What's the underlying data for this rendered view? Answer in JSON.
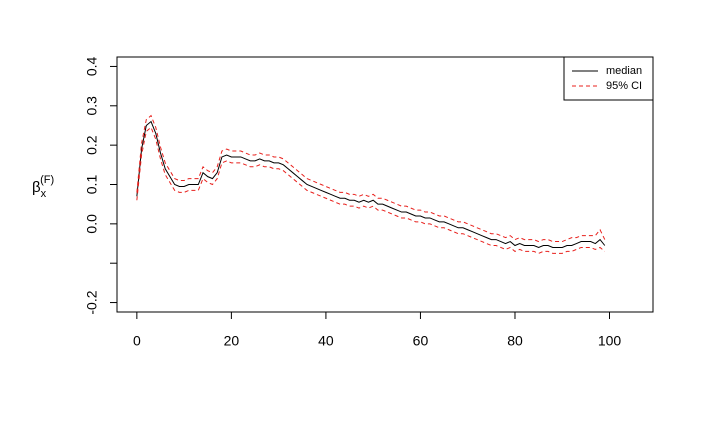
{
  "chart_data": {
    "type": "line",
    "ylabel": {
      "main": "β",
      "sub": "x",
      "sup": "(F)"
    },
    "x": [
      0,
      1,
      2,
      3,
      4,
      5,
      6,
      7,
      8,
      9,
      10,
      11,
      12,
      13,
      14,
      15,
      16,
      17,
      18,
      19,
      20,
      21,
      22,
      23,
      24,
      25,
      26,
      27,
      28,
      29,
      30,
      31,
      32,
      33,
      34,
      35,
      36,
      37,
      38,
      39,
      40,
      41,
      42,
      43,
      44,
      45,
      46,
      47,
      48,
      49,
      50,
      51,
      52,
      53,
      54,
      55,
      56,
      57,
      58,
      59,
      60,
      61,
      62,
      63,
      64,
      65,
      66,
      67,
      68,
      69,
      70,
      71,
      72,
      73,
      74,
      75,
      76,
      77,
      78,
      79,
      80,
      81,
      82,
      83,
      84,
      85,
      86,
      87,
      88,
      89,
      90,
      91,
      92,
      93,
      94,
      95,
      96,
      97,
      98,
      99
    ],
    "series": [
      {
        "name": "median",
        "color": "#000000",
        "values": [
          0.07,
          0.19,
          0.25,
          0.26,
          0.23,
          0.18,
          0.14,
          0.12,
          0.1,
          0.095,
          0.095,
          0.1,
          0.1,
          0.1,
          0.13,
          0.12,
          0.115,
          0.13,
          0.17,
          0.175,
          0.17,
          0.17,
          0.17,
          0.165,
          0.16,
          0.16,
          0.165,
          0.16,
          0.16,
          0.155,
          0.155,
          0.15,
          0.14,
          0.13,
          0.12,
          0.11,
          0.1,
          0.095,
          0.09,
          0.085,
          0.08,
          0.075,
          0.07,
          0.065,
          0.065,
          0.06,
          0.06,
          0.055,
          0.06,
          0.055,
          0.06,
          0.05,
          0.05,
          0.045,
          0.04,
          0.035,
          0.03,
          0.03,
          0.025,
          0.02,
          0.02,
          0.015,
          0.015,
          0.01,
          0.005,
          0.005,
          0.0,
          -0.005,
          -0.01,
          -0.01,
          -0.015,
          -0.02,
          -0.025,
          -0.03,
          -0.035,
          -0.04,
          -0.04,
          -0.045,
          -0.05,
          -0.045,
          -0.055,
          -0.05,
          -0.055,
          -0.055,
          -0.055,
          -0.06,
          -0.055,
          -0.055,
          -0.06,
          -0.06,
          -0.06,
          -0.055,
          -0.055,
          -0.05,
          -0.045,
          -0.045,
          -0.045,
          -0.05,
          -0.04,
          -0.055
        ]
      },
      {
        "name": "95% CI",
        "color": "#e8201c",
        "dashed": true,
        "upper": [
          0.08,
          0.205,
          0.265,
          0.275,
          0.245,
          0.195,
          0.155,
          0.135,
          0.115,
          0.11,
          0.11,
          0.115,
          0.115,
          0.115,
          0.145,
          0.135,
          0.13,
          0.145,
          0.185,
          0.19,
          0.185,
          0.185,
          0.185,
          0.18,
          0.175,
          0.175,
          0.18,
          0.175,
          0.175,
          0.17,
          0.17,
          0.165,
          0.155,
          0.145,
          0.135,
          0.125,
          0.115,
          0.11,
          0.105,
          0.1,
          0.095,
          0.09,
          0.085,
          0.08,
          0.08,
          0.075,
          0.075,
          0.07,
          0.075,
          0.07,
          0.075,
          0.065,
          0.065,
          0.06,
          0.055,
          0.05,
          0.045,
          0.045,
          0.04,
          0.035,
          0.035,
          0.03,
          0.03,
          0.025,
          0.02,
          0.02,
          0.015,
          0.01,
          0.005,
          0.005,
          0.0,
          -0.005,
          -0.01,
          -0.015,
          -0.02,
          -0.025,
          -0.025,
          -0.03,
          -0.035,
          -0.03,
          -0.04,
          -0.035,
          -0.04,
          -0.04,
          -0.04,
          -0.045,
          -0.04,
          -0.04,
          -0.045,
          -0.045,
          -0.045,
          -0.04,
          -0.035,
          -0.035,
          -0.03,
          -0.03,
          -0.03,
          -0.03,
          -0.015,
          -0.04
        ],
        "lower": [
          0.06,
          0.175,
          0.235,
          0.245,
          0.215,
          0.165,
          0.125,
          0.105,
          0.085,
          0.08,
          0.08,
          0.085,
          0.085,
          0.085,
          0.115,
          0.105,
          0.1,
          0.115,
          0.155,
          0.16,
          0.155,
          0.155,
          0.155,
          0.15,
          0.145,
          0.145,
          0.15,
          0.145,
          0.145,
          0.14,
          0.14,
          0.135,
          0.125,
          0.115,
          0.105,
          0.095,
          0.085,
          0.08,
          0.075,
          0.07,
          0.065,
          0.06,
          0.055,
          0.05,
          0.05,
          0.045,
          0.045,
          0.04,
          0.045,
          0.04,
          0.045,
          0.035,
          0.035,
          0.03,
          0.025,
          0.02,
          0.015,
          0.015,
          0.01,
          0.005,
          0.005,
          0.0,
          0.0,
          -0.005,
          -0.01,
          -0.01,
          -0.015,
          -0.02,
          -0.025,
          -0.025,
          -0.03,
          -0.035,
          -0.04,
          -0.045,
          -0.05,
          -0.055,
          -0.055,
          -0.06,
          -0.065,
          -0.06,
          -0.07,
          -0.065,
          -0.07,
          -0.07,
          -0.07,
          -0.075,
          -0.07,
          -0.07,
          -0.075,
          -0.075,
          -0.075,
          -0.07,
          -0.07,
          -0.065,
          -0.06,
          -0.06,
          -0.06,
          -0.065,
          -0.06,
          -0.07
        ]
      }
    ],
    "xlim": [
      -4.2,
      109.2
    ],
    "xticks": [
      0,
      20,
      40,
      60,
      80,
      100
    ],
    "ylim": [
      -0.224,
      0.424
    ],
    "yticks": [
      -0.2,
      {
        "value": -0.1,
        "label": null
      },
      {
        "value": 0,
        "label": "0.0"
      },
      0.1,
      0.2,
      0.3,
      0.4
    ],
    "legend": "top-right",
    "grid": false
  }
}
